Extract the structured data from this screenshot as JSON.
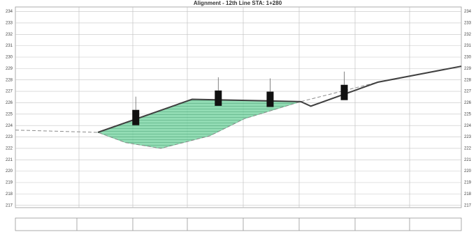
{
  "chart_data": {
    "type": "cross-section",
    "title": "Alignment - 12th Line STA: 1+280",
    "xlim": [
      0,
      80
    ],
    "ylim": [
      216.8,
      234.4
    ],
    "yticks": [
      217,
      218,
      219,
      220,
      221,
      222,
      223,
      224,
      225,
      226,
      227,
      228,
      229,
      230,
      231,
      232,
      233,
      234
    ],
    "grid": true,
    "series": [
      {
        "color": "#8a8a8a",
        "x": [
          0,
          14.8,
          19.8,
          26.1,
          34.9,
          41.1,
          51.2,
          65.0,
          80
        ],
        "values": [
          223.6,
          223.4,
          222.5,
          222.0,
          223.1,
          224.6,
          226.1,
          227.8,
          229.2
        ]
      },
      {
        "color": "#404040",
        "x": [
          14.8,
          31.7,
          51.2,
          53.0,
          65.0,
          80
        ],
        "values": [
          223.4,
          226.3,
          226.1,
          225.7,
          227.8,
          229.2
        ]
      }
    ],
    "fill_color": "#5cc98f",
    "markers": {
      "color": "#111111",
      "x": [
        21.6,
        36.4,
        45.7,
        59.0
      ],
      "values": [
        224.7,
        226.4,
        226.3,
        226.9
      ]
    }
  }
}
